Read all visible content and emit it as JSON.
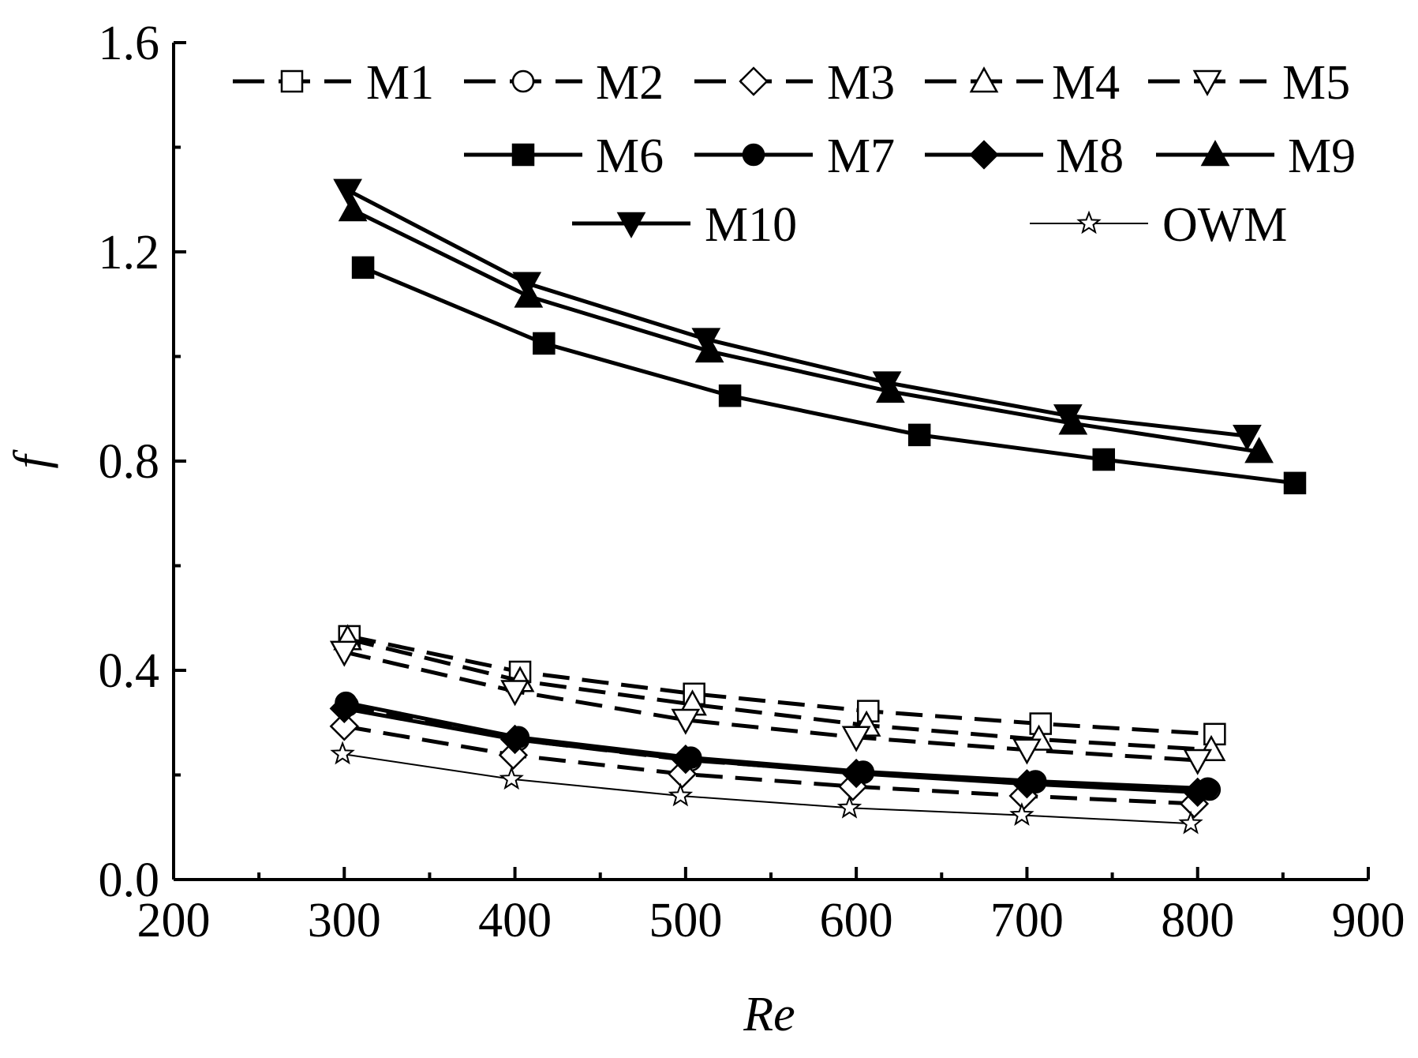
{
  "chart_data": {
    "type": "line",
    "title": "",
    "xlabel": "Re",
    "ylabel": "f",
    "xlim": [
      200,
      900
    ],
    "ylim": [
      0.0,
      1.6
    ],
    "xticks": [
      200,
      300,
      400,
      500,
      600,
      700,
      800,
      900
    ],
    "yticks": [
      0.0,
      0.4,
      0.8,
      1.2,
      1.6
    ],
    "xtick_labels": [
      "200",
      "300",
      "400",
      "500",
      "600",
      "700",
      "800",
      "900"
    ],
    "ytick_labels": [
      "0.0",
      "0.4",
      "0.8",
      "1.2",
      "1.6"
    ],
    "grid": false,
    "legend_position": "top",
    "series": [
      {
        "name": "M1",
        "line": "dashed",
        "marker": "square",
        "filled": false,
        "x": [
          303,
          403,
          505,
          607,
          708,
          810
        ],
        "y": [
          0.465,
          0.397,
          0.355,
          0.322,
          0.298,
          0.278
        ]
      },
      {
        "name": "M2",
        "line": "dashed",
        "marker": "circle",
        "filled": false,
        "x": [
          302,
          402,
          503,
          604,
          705,
          807
        ],
        "y": [
          0.333,
          0.267,
          0.228,
          0.204,
          0.186,
          0.172
        ]
      },
      {
        "name": "M3",
        "line": "dashed",
        "marker": "diamond",
        "filled": false,
        "x": [
          300,
          399,
          498,
          598,
          698,
          798
        ],
        "y": [
          0.293,
          0.238,
          0.202,
          0.178,
          0.16,
          0.145
        ]
      },
      {
        "name": "M4",
        "line": "dashed",
        "marker": "triangle-up",
        "filled": false,
        "x": [
          302,
          403,
          504,
          606,
          707,
          808
        ],
        "y": [
          0.46,
          0.38,
          0.335,
          0.295,
          0.268,
          0.248
        ]
      },
      {
        "name": "M5",
        "line": "dashed",
        "marker": "triangle-down",
        "filled": false,
        "x": [
          300,
          400,
          500,
          600,
          700,
          800
        ],
        "y": [
          0.435,
          0.36,
          0.305,
          0.272,
          0.248,
          0.228
        ]
      },
      {
        "name": "M6",
        "line": "solid",
        "marker": "square",
        "filled": true,
        "x": [
          311,
          417,
          526,
          637,
          745,
          857
        ],
        "y": [
          1.17,
          1.025,
          0.925,
          0.85,
          0.803,
          0.758
        ]
      },
      {
        "name": "M7",
        "line": "solid",
        "marker": "circle",
        "filled": true,
        "x": [
          301,
          402,
          503,
          604,
          705,
          806
        ],
        "y": [
          0.338,
          0.272,
          0.233,
          0.206,
          0.188,
          0.174
        ]
      },
      {
        "name": "M8",
        "line": "solid",
        "marker": "diamond",
        "filled": true,
        "x": [
          300,
          400,
          500,
          600,
          700,
          800
        ],
        "y": [
          0.327,
          0.268,
          0.23,
          0.203,
          0.183,
          0.167
        ]
      },
      {
        "name": "M9",
        "line": "solid",
        "marker": "triangle-up",
        "filled": true,
        "x": [
          305,
          408,
          514,
          620,
          727,
          836
        ],
        "y": [
          1.28,
          1.115,
          1.01,
          0.933,
          0.872,
          0.818
        ]
      },
      {
        "name": "M10",
        "line": "solid",
        "marker": "triangle-down",
        "filled": true,
        "x": [
          302,
          407,
          512,
          618,
          724,
          829
        ],
        "y": [
          1.318,
          1.14,
          1.033,
          0.95,
          0.887,
          0.848
        ]
      },
      {
        "name": "OWM",
        "line": "thin",
        "marker": "star",
        "filled": false,
        "x": [
          299,
          398,
          497,
          596,
          697,
          796
        ],
        "y": [
          0.24,
          0.192,
          0.16,
          0.137,
          0.123,
          0.107
        ]
      }
    ]
  }
}
